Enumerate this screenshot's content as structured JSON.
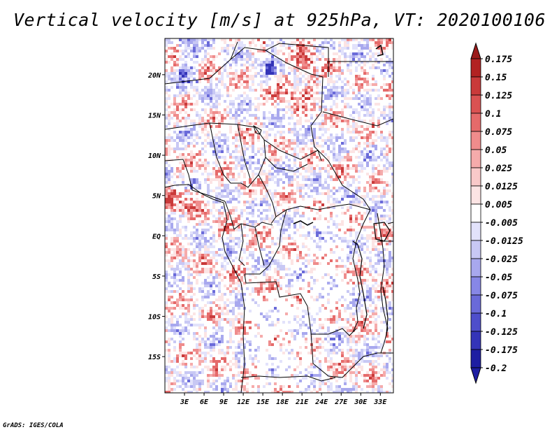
{
  "title": "Vertical velocity [m/s] at 925hPa, VT: 2020100106",
  "footer": "GrADS: IGES/COLA",
  "map": {
    "lon_range": [
      0,
      35
    ],
    "lat_range": [
      -19.5,
      24.5
    ],
    "lat_ticks": [
      {
        "value": 20,
        "label": "20N"
      },
      {
        "value": 15,
        "label": "15N"
      },
      {
        "value": 10,
        "label": "10N"
      },
      {
        "value": 5,
        "label": "5N"
      },
      {
        "value": 0,
        "label": "EQ"
      },
      {
        "value": -5,
        "label": "5S"
      },
      {
        "value": -10,
        "label": "10S"
      },
      {
        "value": -15,
        "label": "15S"
      }
    ],
    "lon_ticks": [
      {
        "value": 3,
        "label": "3E"
      },
      {
        "value": 6,
        "label": "6E"
      },
      {
        "value": 9,
        "label": "9E"
      },
      {
        "value": 12,
        "label": "12E"
      },
      {
        "value": 15,
        "label": "15E"
      },
      {
        "value": 18,
        "label": "18E"
      },
      {
        "value": 21,
        "label": "21E"
      },
      {
        "value": 24,
        "label": "24E"
      },
      {
        "value": 27,
        "label": "27E"
      },
      {
        "value": 30,
        "label": "30E"
      },
      {
        "value": 33,
        "label": "33E"
      }
    ]
  },
  "colorbar": {
    "levels": [
      {
        "label": "0.175",
        "color": "#9b1b1b"
      },
      {
        "label": "0.15",
        "color": "#b22222"
      },
      {
        "label": "0.125",
        "color": "#c93a3a"
      },
      {
        "label": "0.1",
        "color": "#da5252"
      },
      {
        "label": "0.075",
        "color": "#e56a6a"
      },
      {
        "label": "0.05",
        "color": "#ef8c8c"
      },
      {
        "label": "0.025",
        "color": "#f5abab"
      },
      {
        "label": "0.0125",
        "color": "#f9c9c9"
      },
      {
        "label": "0.005",
        "color": "#fce4e4"
      },
      {
        "label": "-0.005",
        "color": "#ffffff"
      },
      {
        "label": "-0.0125",
        "color": "#e2e2fb"
      },
      {
        "label": "-0.025",
        "color": "#c8c8f4"
      },
      {
        "label": "-0.05",
        "color": "#a8a8ee"
      },
      {
        "label": "-0.075",
        "color": "#8787e6"
      },
      {
        "label": "-0.1",
        "color": "#6a6ad9"
      },
      {
        "label": "-0.125",
        "color": "#4e4ecb"
      },
      {
        "label": "-0.175",
        "color": "#3434b8"
      },
      {
        "label": "-0.2",
        "color": "#1e1ea2"
      }
    ],
    "top_color": "#9b1b1b",
    "bottom_color": "#1e1ea2"
  }
}
